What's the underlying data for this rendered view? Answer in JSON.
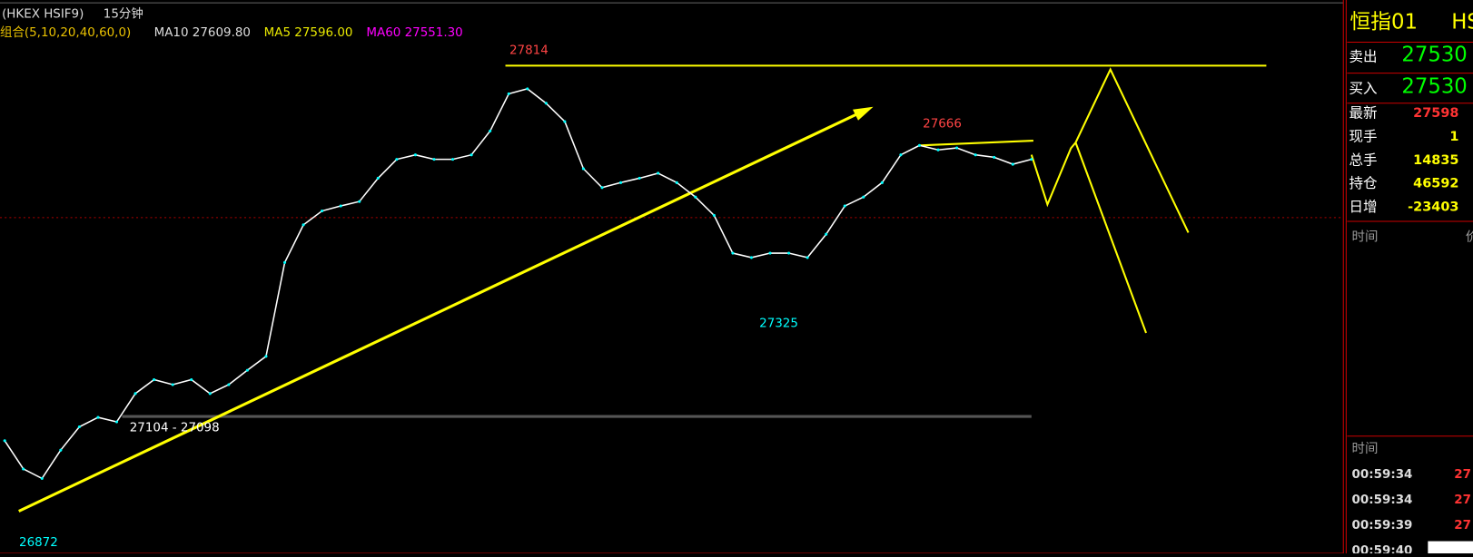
{
  "header": {
    "symbol": "(HKEX HSIF9)",
    "period": "15分钟",
    "combo": "组合(5,10,20,40,60,0)",
    "indicators": [
      "MA10 27609.80",
      "MA5 27596.00",
      "MA60 27551.30"
    ]
  },
  "chart_data": {
    "type": "line",
    "color": "#ffffff",
    "ylim": [
      26831,
      27946
    ],
    "values": [
      27058,
      27001,
      26982,
      27039,
      27086,
      27105,
      27096,
      27153,
      27181,
      27171,
      27181,
      27153,
      27171,
      27200,
      27228,
      27417,
      27493,
      27521,
      27531,
      27540,
      27587,
      27625,
      27634,
      27625,
      27625,
      27634,
      27682,
      27757,
      27767,
      27738,
      27701,
      27606,
      27568,
      27578,
      27587,
      27597,
      27578,
      27549,
      27512,
      27436,
      27427,
      27436,
      27436,
      27427,
      27474,
      27531,
      27549,
      27578,
      27634,
      27653,
      27644,
      27648,
      27634,
      27629,
      27615,
      27625
    ],
    "annotations": [
      27814,
      27666,
      27325,
      26872
    ],
    "range_label": "27104 - 27098"
  },
  "quote": {
    "title": "恒指01",
    "code": "HS",
    "sell_label": "卖出",
    "sell": 27530,
    "buy_label": "买入",
    "buy": 27530,
    "rows": [
      [
        "最新",
        27598
      ],
      [
        "现手",
        1
      ],
      [
        "总手",
        14835
      ],
      [
        "持仓",
        46592
      ],
      [
        "日增",
        -23403
      ]
    ],
    "time_header": "时间",
    "price_header": "价",
    "trades_header": "时间",
    "trades": [
      [
        "00:59:34",
        "27"
      ],
      [
        "00:59:34",
        "27"
      ],
      [
        "00:59:39",
        "27"
      ],
      [
        "00:59:40",
        ""
      ]
    ]
  }
}
